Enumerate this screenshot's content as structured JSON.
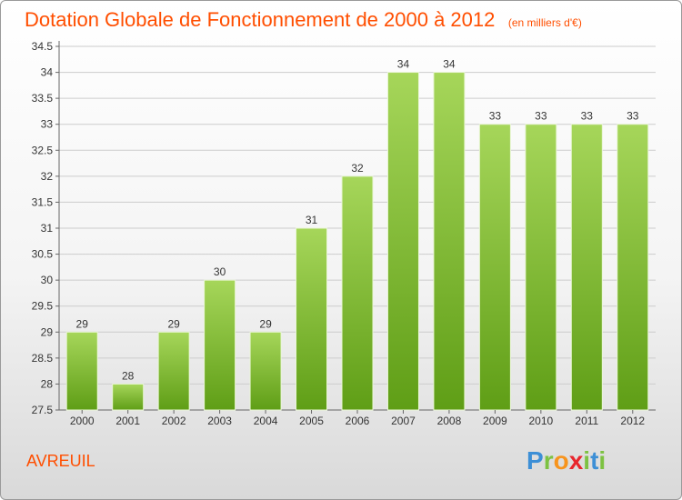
{
  "header": {
    "title": "Dotation Globale de Fonctionnement de 2000 à 2012",
    "subtitle": "(en milliers d'€)"
  },
  "commune": "AVREUIL",
  "logo": {
    "text": "Proxiti",
    "letters": [
      "P",
      "r",
      "o",
      "x",
      "i",
      "t",
      "i"
    ]
  },
  "colors": {
    "accent": "#ff4e00",
    "bar_top": "#a6d65a",
    "bar_bottom": "#5f9e16",
    "grid": "#cccccc"
  },
  "chart_data": {
    "type": "bar",
    "categories": [
      "2000",
      "2001",
      "2002",
      "2003",
      "2004",
      "2005",
      "2006",
      "2007",
      "2008",
      "2009",
      "2010",
      "2011",
      "2012"
    ],
    "values": [
      29,
      28,
      29,
      30,
      29,
      31,
      32,
      34,
      34,
      33,
      33,
      33,
      33
    ],
    "value_labels": [
      "29",
      "28",
      "29",
      "30",
      "29",
      "31",
      "32",
      "34",
      "34",
      "33",
      "33",
      "33",
      "33"
    ],
    "yticks": [
      "27.5",
      "28",
      "28.5",
      "29",
      "29.5",
      "30",
      "30.5",
      "31",
      "31.5",
      "32",
      "32.5",
      "33",
      "33.5",
      "34",
      "34.5"
    ],
    "ylim": [
      27.5,
      34.5
    ],
    "title": "Dotation Globale de Fonctionnement de 2000 à 2012",
    "xlabel": "",
    "ylabel": "",
    "grid": true,
    "legend": "none"
  }
}
